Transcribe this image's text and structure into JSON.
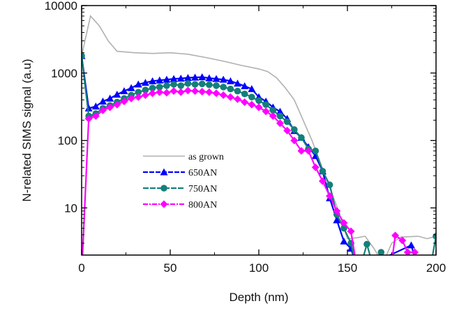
{
  "chart_data": {
    "type": "line",
    "title": "",
    "xlabel": "Depth (nm)",
    "ylabel": "N-related SIMS signal (a.u)",
    "xlim": [
      0,
      200
    ],
    "ylim": [
      2,
      10000
    ],
    "yscale": "log",
    "xticks": [
      0,
      50,
      100,
      150,
      200
    ],
    "xtick_labels": [
      "0",
      "50",
      "100",
      "150",
      "200"
    ],
    "yticks": [
      10,
      100,
      1000,
      10000
    ],
    "ytick_labels": [
      "10",
      "100",
      "1000",
      "10000"
    ],
    "grid": false,
    "legend_placement": "center-left",
    "series": [
      {
        "name": "as grown",
        "color": "#b0b0b0",
        "marker": "none",
        "x": [
          0,
          5,
          10,
          15,
          20,
          30,
          40,
          50,
          60,
          70,
          80,
          90,
          100,
          105,
          110,
          115,
          120,
          125,
          130,
          135,
          140,
          145,
          148,
          150,
          155,
          160,
          165,
          170,
          175,
          180,
          190,
          195,
          200
        ],
        "y": [
          1800,
          7000,
          5000,
          3000,
          2100,
          2000,
          1950,
          2000,
          1900,
          1700,
          1500,
          1300,
          1150,
          1050,
          850,
          600,
          400,
          200,
          100,
          45,
          20,
          9,
          5,
          3.5,
          3.6,
          3.8,
          2.5,
          1.5,
          3,
          3.7,
          3.8,
          3.5,
          3.8
        ]
      },
      {
        "name": "650AN",
        "color": "#0000ff",
        "marker": "triangle",
        "x": [
          0,
          4,
          8,
          12,
          16,
          20,
          24,
          28,
          32,
          36,
          40,
          44,
          48,
          52,
          56,
          60,
          64,
          68,
          72,
          76,
          80,
          84,
          88,
          92,
          96,
          100,
          104,
          108,
          112,
          116,
          120,
          124,
          128,
          132,
          136,
          140,
          144,
          148,
          152,
          156,
          186,
          190
        ],
        "y": [
          1800,
          300,
          320,
          380,
          420,
          480,
          540,
          600,
          680,
          720,
          760,
          780,
          800,
          820,
          830,
          850,
          860,
          870,
          840,
          820,
          800,
          760,
          700,
          640,
          580,
          440,
          380,
          310,
          268,
          210,
          139,
          110,
          80,
          59,
          35,
          14,
          6.6,
          3.2,
          2.5,
          1.2,
          2.8,
          1.2
        ]
      },
      {
        "name": "750AN",
        "color": "#138079",
        "marker": "circle",
        "x": [
          0,
          4,
          8,
          12,
          16,
          20,
          24,
          28,
          32,
          36,
          40,
          44,
          48,
          52,
          56,
          60,
          64,
          68,
          72,
          76,
          80,
          84,
          88,
          92,
          96,
          100,
          104,
          108,
          112,
          116,
          120,
          124,
          128,
          132,
          136,
          140,
          144,
          148,
          152,
          156,
          161,
          165,
          169,
          173,
          196,
          200
        ],
        "y": [
          1800,
          230,
          250,
          300,
          330,
          370,
          420,
          470,
          520,
          560,
          600,
          620,
          650,
          680,
          650,
          700,
          680,
          690,
          670,
          650,
          620,
          580,
          540,
          490,
          440,
          390,
          340,
          280,
          230,
          190,
          145,
          110,
          75,
          70,
          35,
          22,
          8,
          5,
          3,
          1,
          2.9,
          1.2,
          2.2,
          1,
          1,
          3.8
        ]
      },
      {
        "name": "800AN",
        "color": "#ff00ff",
        "marker": "diamond",
        "x": [
          0,
          4,
          8,
          12,
          16,
          20,
          24,
          28,
          32,
          36,
          40,
          44,
          48,
          52,
          56,
          60,
          64,
          68,
          72,
          76,
          80,
          84,
          88,
          92,
          96,
          100,
          104,
          108,
          112,
          116,
          120,
          124,
          128,
          132,
          136,
          140,
          144,
          148,
          152,
          156,
          174,
          177,
          181,
          184,
          188
        ],
        "y": [
          1,
          210,
          230,
          280,
          310,
          340,
          380,
          420,
          440,
          470,
          500,
          520,
          510,
          540,
          520,
          550,
          540,
          530,
          520,
          500,
          470,
          440,
          410,
          370,
          340,
          310,
          270,
          230,
          180,
          140,
          100,
          70,
          70,
          40,
          25,
          15,
          9,
          6,
          4.5,
          1,
          1,
          3.9,
          3.3,
          2.2,
          2.2
        ]
      }
    ]
  }
}
